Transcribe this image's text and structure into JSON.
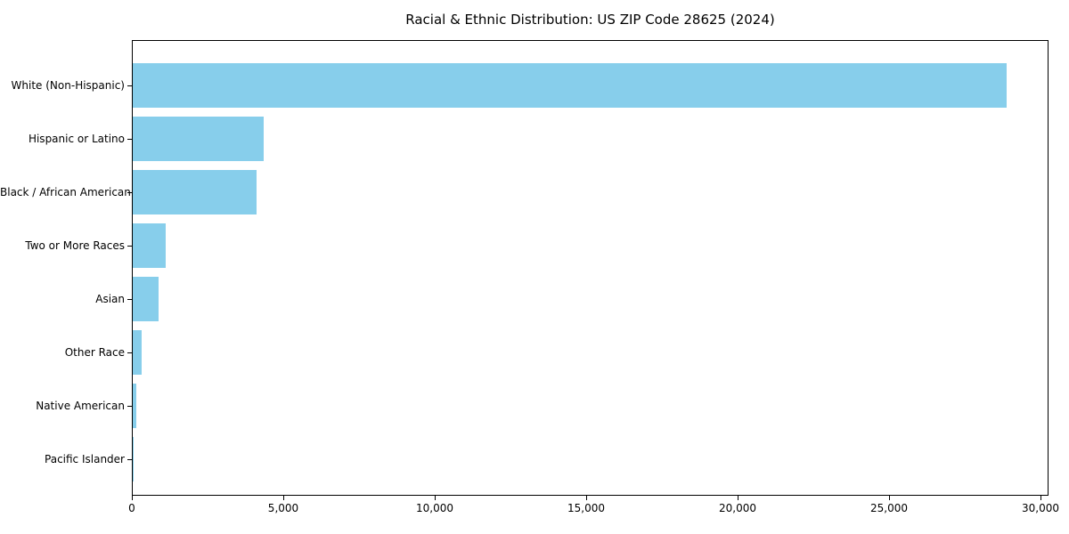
{
  "chart_data": {
    "type": "bar",
    "orientation": "horizontal",
    "title": "Racial & Ethnic Distribution: US ZIP Code 28625 (2024)",
    "categories": [
      "White (Non-Hispanic)",
      "Hispanic or Latino",
      "Black / African American",
      "Two or More Races",
      "Asian",
      "Other Race",
      "Native American",
      "Pacific Islander"
    ],
    "values": [
      28850,
      4320,
      4100,
      1090,
      850,
      300,
      110,
      10
    ],
    "xlabel": "",
    "ylabel": "",
    "xlim": [
      0,
      30265
    ],
    "x_ticks": [
      0,
      5000,
      10000,
      15000,
      20000,
      25000,
      30000
    ],
    "x_tick_labels": [
      "0",
      "5,000",
      "10,000",
      "15,000",
      "20,000",
      "25,000",
      "30,000"
    ],
    "bar_color": "#87CEEB",
    "grid": false,
    "legend": "none",
    "background_color": "#ffffff",
    "axis_color": "#000000"
  }
}
